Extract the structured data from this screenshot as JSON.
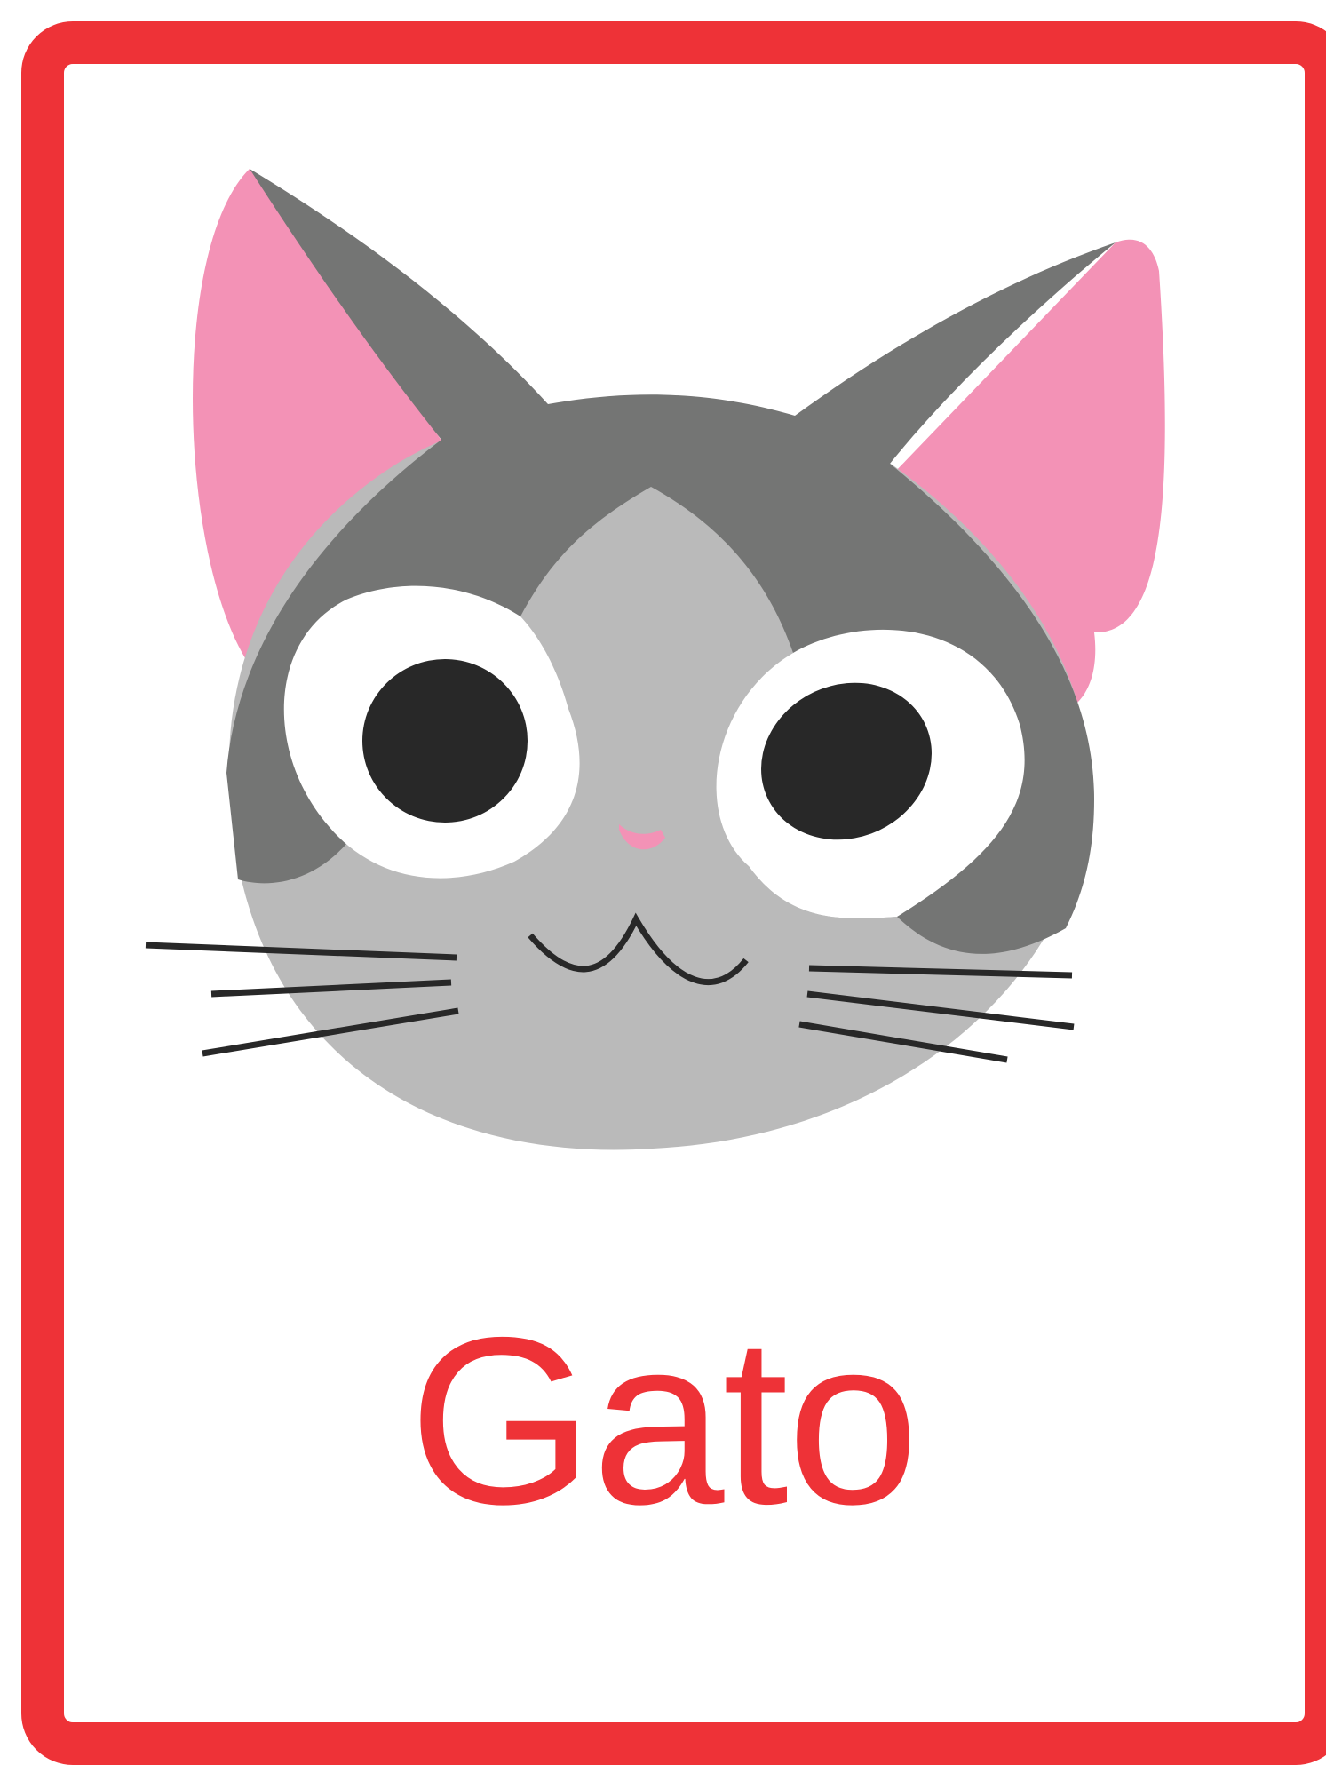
{
  "card": {
    "word": "Gato",
    "illustration_icon": "cat-face-icon"
  },
  "colors": {
    "frame": "#ee3237",
    "text": "#ee3237",
    "fur_dark": "#747574",
    "fur_light": "#bababa",
    "ear_inner": "#f392b6",
    "eye_white": "#ffffff",
    "pupil": "#282828",
    "whisker": "#282828",
    "nose": "#f392b6"
  }
}
